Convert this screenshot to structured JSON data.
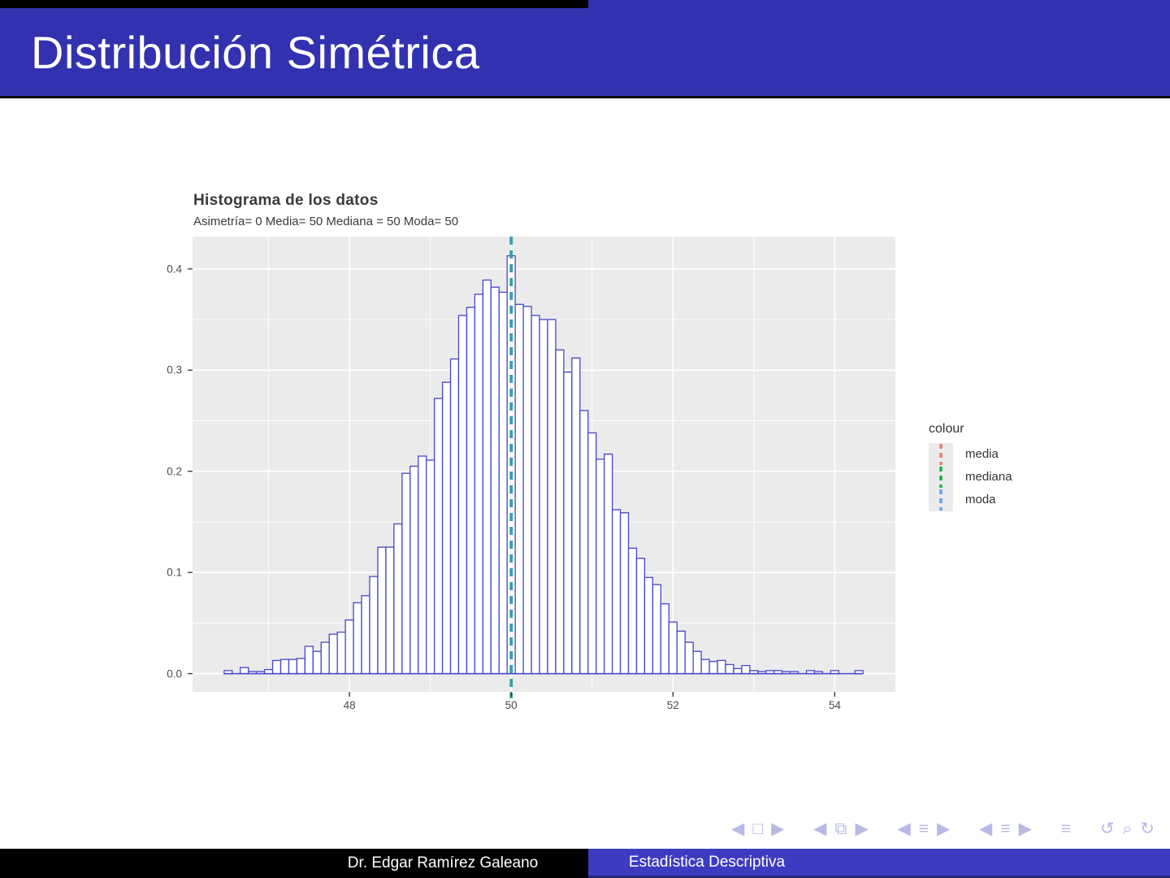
{
  "slide": {
    "title": "Distribución Simétrica"
  },
  "footer": {
    "author": "Dr. Edgar Ramírez Galeano",
    "course": "Estadística Descriptiva"
  },
  "nav": {
    "groups": [
      {
        "name": "frame-nav",
        "symbols": [
          "◀",
          "□",
          "▶"
        ]
      },
      {
        "name": "frame-group-nav",
        "symbols": [
          "◀",
          "⧉",
          "▶"
        ]
      },
      {
        "name": "subsection-nav",
        "symbols": [
          "◀",
          "≡",
          "▶"
        ]
      },
      {
        "name": "section-nav",
        "symbols": [
          "◀",
          "≡",
          "▶"
        ]
      },
      {
        "name": "appendix-nav",
        "symbols": [
          "≡"
        ]
      },
      {
        "name": "history-nav",
        "symbols": [
          "↺",
          "⌕",
          "↻"
        ]
      }
    ]
  },
  "chart_data": {
    "type": "bar",
    "title": "Histograma de los datos",
    "subtitle": "Asimetría= 0 Media= 50  Mediana =  50  Moda= 50",
    "xlabel": "",
    "ylabel": "",
    "xlim": [
      46.06,
      54.75
    ],
    "ylim": [
      -0.018,
      0.432
    ],
    "x_ticks": [
      48,
      50,
      52,
      54
    ],
    "x_minor_ticks": [
      47,
      49,
      51,
      53
    ],
    "y_ticks": [
      0.0,
      0.1,
      0.2,
      0.3,
      0.4
    ],
    "y_minor_ticks": [
      0.05,
      0.15,
      0.25,
      0.35
    ],
    "grid": true,
    "panel_bg": "#ebebeb",
    "grid_color": "#ffffff",
    "bar_fill": "#ffffff",
    "bar_stroke": "#4746c9",
    "bin_width": 0.1,
    "vline": {
      "x": 50,
      "color": "#36a0aa",
      "style": "dashed"
    },
    "legend": {
      "title": "colour",
      "position": "right",
      "entries": [
        {
          "label": "media",
          "color": "#F8766D"
        },
        {
          "label": "mediana",
          "color": "#00BA38"
        },
        {
          "label": "moda",
          "color": "#619CFF"
        }
      ]
    },
    "stats": {
      "asimetria": 0,
      "media": 50,
      "mediana": 50,
      "moda": 50
    },
    "bins": [
      [
        46.5,
        0.003
      ],
      [
        46.6,
        0.0
      ],
      [
        46.7,
        0.006
      ],
      [
        46.8,
        0.002
      ],
      [
        46.9,
        0.002
      ],
      [
        47.0,
        0.004
      ],
      [
        47.1,
        0.013
      ],
      [
        47.2,
        0.014
      ],
      [
        47.3,
        0.014
      ],
      [
        47.4,
        0.015
      ],
      [
        47.5,
        0.027
      ],
      [
        47.6,
        0.022
      ],
      [
        47.7,
        0.031
      ],
      [
        47.8,
        0.039
      ],
      [
        47.9,
        0.041
      ],
      [
        48.0,
        0.053
      ],
      [
        48.1,
        0.07
      ],
      [
        48.2,
        0.077
      ],
      [
        48.3,
        0.096
      ],
      [
        48.4,
        0.125
      ],
      [
        48.5,
        0.125
      ],
      [
        48.6,
        0.148
      ],
      [
        48.7,
        0.198
      ],
      [
        48.8,
        0.205
      ],
      [
        48.9,
        0.215
      ],
      [
        49.0,
        0.211
      ],
      [
        49.1,
        0.272
      ],
      [
        49.2,
        0.288
      ],
      [
        49.3,
        0.311
      ],
      [
        49.4,
        0.354
      ],
      [
        49.5,
        0.362
      ],
      [
        49.6,
        0.375
      ],
      [
        49.7,
        0.389
      ],
      [
        49.8,
        0.382
      ],
      [
        49.9,
        0.377
      ],
      [
        50.0,
        0.413
      ],
      [
        50.1,
        0.365
      ],
      [
        50.2,
        0.363
      ],
      [
        50.3,
        0.354
      ],
      [
        50.4,
        0.35
      ],
      [
        50.5,
        0.35
      ],
      [
        50.6,
        0.32
      ],
      [
        50.7,
        0.298
      ],
      [
        50.8,
        0.312
      ],
      [
        50.9,
        0.26
      ],
      [
        51.0,
        0.238
      ],
      [
        51.1,
        0.212
      ],
      [
        51.2,
        0.217
      ],
      [
        51.3,
        0.162
      ],
      [
        51.4,
        0.159
      ],
      [
        51.5,
        0.124
      ],
      [
        51.6,
        0.114
      ],
      [
        51.7,
        0.095
      ],
      [
        51.8,
        0.088
      ],
      [
        51.9,
        0.069
      ],
      [
        52.0,
        0.051
      ],
      [
        52.1,
        0.042
      ],
      [
        52.2,
        0.031
      ],
      [
        52.3,
        0.022
      ],
      [
        52.4,
        0.014
      ],
      [
        52.5,
        0.012
      ],
      [
        52.6,
        0.013
      ],
      [
        52.7,
        0.009
      ],
      [
        52.8,
        0.005
      ],
      [
        52.9,
        0.008
      ],
      [
        53.0,
        0.003
      ],
      [
        53.1,
        0.002
      ],
      [
        53.2,
        0.003
      ],
      [
        53.3,
        0.003
      ],
      [
        53.4,
        0.002
      ],
      [
        53.5,
        0.002
      ],
      [
        53.6,
        0.0
      ],
      [
        53.7,
        0.003
      ],
      [
        53.8,
        0.002
      ],
      [
        53.9,
        0.0
      ],
      [
        54.0,
        0.003
      ],
      [
        54.1,
        0.0
      ],
      [
        54.2,
        0.0
      ],
      [
        54.3,
        0.003
      ]
    ]
  }
}
